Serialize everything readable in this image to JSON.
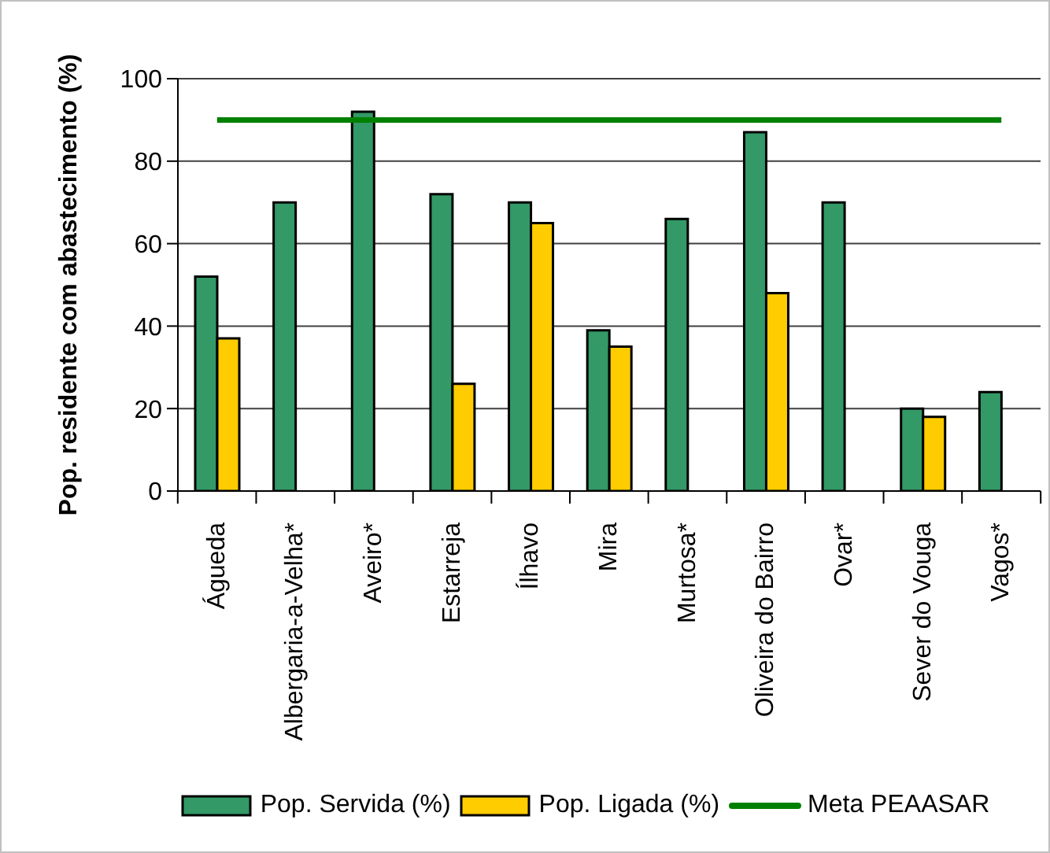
{
  "chart_data": {
    "type": "bar",
    "ylabel": "Pop. residente com abastecimento (%)",
    "categories": [
      "Águeda",
      "Albergaria-a-Velha*",
      "Aveiro*",
      "Estarreja",
      "Ílhavo",
      "Mira",
      "Murtosa*",
      "Oliveira do Bairro",
      "Ovar*",
      "Sever do Vouga",
      "Vagos*"
    ],
    "series": [
      {
        "name": "Pop. Servida (%)",
        "color": "#339966",
        "values": [
          52,
          70,
          92,
          72,
          70,
          39,
          66,
          87,
          70,
          20,
          24
        ]
      },
      {
        "name": "Pop. Ligada (%)",
        "color": "#ffcc00",
        "values": [
          37,
          null,
          null,
          26,
          65,
          35,
          null,
          48,
          null,
          18,
          null
        ]
      },
      {
        "name": "Meta PEAASAR",
        "type": "line",
        "color": "#008000",
        "values": [
          90,
          90,
          90,
          90,
          90,
          90,
          90,
          90,
          90,
          90,
          90
        ]
      }
    ],
    "ylim": [
      0,
      100
    ],
    "yticks": [
      0,
      20,
      40,
      60,
      80,
      100
    ],
    "grid": "y",
    "legend": "bottom"
  }
}
